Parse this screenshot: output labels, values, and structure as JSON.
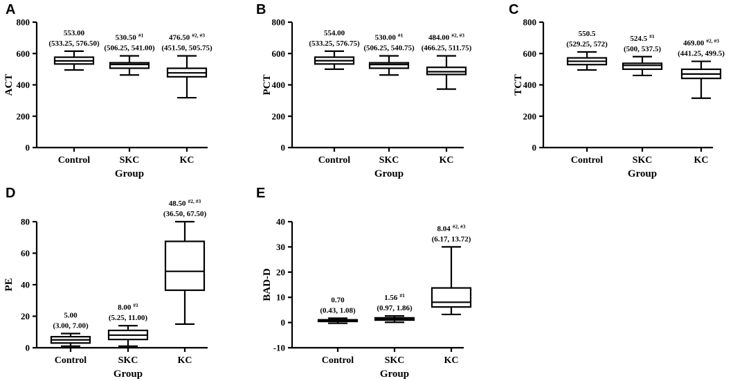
{
  "chart_data": [
    {
      "panel": "A",
      "type": "boxplot",
      "ylabel": "ACT",
      "xlabel": "Group",
      "ylim": [
        0,
        800
      ],
      "yticks": [
        0,
        200,
        400,
        600,
        800
      ],
      "categories": [
        "Control",
        "SKC",
        "KC"
      ],
      "boxes": [
        {
          "min": 495,
          "q1": 533.25,
          "median": 553,
          "q3": 576.5,
          "max": 615
        },
        {
          "min": 463,
          "q1": 506.25,
          "median": 530.5,
          "q3": 541,
          "max": 585
        },
        {
          "min": 318,
          "q1": 451.5,
          "median": 476.5,
          "q3": 505.75,
          "max": 585
        }
      ],
      "annotations": [
        {
          "median": "553.00",
          "sup": "",
          "iqr": "(533.25, 576.50)"
        },
        {
          "median": "530.50",
          "sup": "#1",
          "iqr": "(506.25, 541.00)"
        },
        {
          "median": "476.50",
          "sup": "#2, #3",
          "iqr": "(451.50, 505.75)"
        }
      ]
    },
    {
      "panel": "B",
      "type": "boxplot",
      "ylabel": "PCT",
      "xlabel": "Group",
      "ylim": [
        0,
        800
      ],
      "yticks": [
        0,
        200,
        400,
        600,
        800
      ],
      "categories": [
        "Control",
        "SKC",
        "KC"
      ],
      "boxes": [
        {
          "min": 500,
          "q1": 533.25,
          "median": 554,
          "q3": 576.75,
          "max": 615
        },
        {
          "min": 463,
          "q1": 506.25,
          "median": 530,
          "q3": 540.75,
          "max": 585
        },
        {
          "min": 373,
          "q1": 466.25,
          "median": 484,
          "q3": 511.75,
          "max": 585
        }
      ],
      "annotations": [
        {
          "median": "554.00",
          "sup": "",
          "iqr": "(533.25, 576.75)"
        },
        {
          "median": "530.00",
          "sup": "#1",
          "iqr": "(506.25, 540.75)"
        },
        {
          "median": "484.00",
          "sup": "#2, #3",
          "iqr": "(466.25, 511.75)"
        }
      ]
    },
    {
      "panel": "C",
      "type": "boxplot",
      "ylabel": "TCT",
      "xlabel": "Group",
      "ylim": [
        0,
        800
      ],
      "yticks": [
        0,
        200,
        400,
        600,
        800
      ],
      "categories": [
        "Control",
        "SKC",
        "KC"
      ],
      "boxes": [
        {
          "min": 495,
          "q1": 529.25,
          "median": 550.5,
          "q3": 572,
          "max": 610
        },
        {
          "min": 460,
          "q1": 500,
          "median": 524.5,
          "q3": 537.5,
          "max": 580
        },
        {
          "min": 315,
          "q1": 441.25,
          "median": 469,
          "q3": 499.5,
          "max": 550
        }
      ],
      "annotations": [
        {
          "median": "550.5",
          "sup": "",
          "iqr": "(529.25, 572)"
        },
        {
          "median": "524.5",
          "sup": "#1",
          "iqr": "(500, 537.5)"
        },
        {
          "median": "469.00",
          "sup": "#2, #3",
          "iqr": "(441.25, 499.5)"
        }
      ]
    },
    {
      "panel": "D",
      "type": "boxplot",
      "ylabel": "PE",
      "xlabel": "Group",
      "ylim": [
        0,
        80
      ],
      "yticks": [
        0,
        20,
        40,
        60,
        80
      ],
      "categories": [
        "Control",
        "SKC",
        "KC"
      ],
      "boxes": [
        {
          "min": 1,
          "q1": 3,
          "median": 5,
          "q3": 7,
          "max": 9
        },
        {
          "min": 1,
          "q1": 5.25,
          "median": 8,
          "q3": 11,
          "max": 14
        },
        {
          "min": 15,
          "q1": 36.5,
          "median": 48.5,
          "q3": 67.5,
          "max": 80
        }
      ],
      "annotations": [
        {
          "median": "5.00",
          "sup": "",
          "iqr": "(3.00, 7.00)"
        },
        {
          "median": "8.00",
          "sup": "#1",
          "iqr": "(5.25, 11.00)"
        },
        {
          "median": "48.50",
          "sup": "#2, #3",
          "iqr": "(36.50, 67.50)"
        }
      ]
    },
    {
      "panel": "E",
      "type": "boxplot",
      "ylabel": "BAD-D",
      "xlabel": "Group",
      "ylim": [
        -10,
        40
      ],
      "yticks": [
        -10,
        0,
        10,
        20,
        30,
        40
      ],
      "categories": [
        "Control",
        "SKC",
        "KC"
      ],
      "boxes": [
        {
          "min": -0.3,
          "q1": 0.43,
          "median": 0.7,
          "q3": 1.08,
          "max": 1.7
        },
        {
          "min": 0.1,
          "q1": 0.97,
          "median": 1.56,
          "q3": 1.86,
          "max": 2.6
        },
        {
          "min": 3.2,
          "q1": 6.17,
          "median": 8.04,
          "q3": 13.72,
          "max": 30
        }
      ],
      "annotations": [
        {
          "median": "0.70",
          "sup": "",
          "iqr": "(0.43, 1.08)"
        },
        {
          "median": "1.56",
          "sup": "#1",
          "iqr": "(0.97, 1.86)"
        },
        {
          "median": "8.04",
          "sup": "#2, #3",
          "iqr": "(6.17, 13.72)"
        }
      ]
    }
  ]
}
